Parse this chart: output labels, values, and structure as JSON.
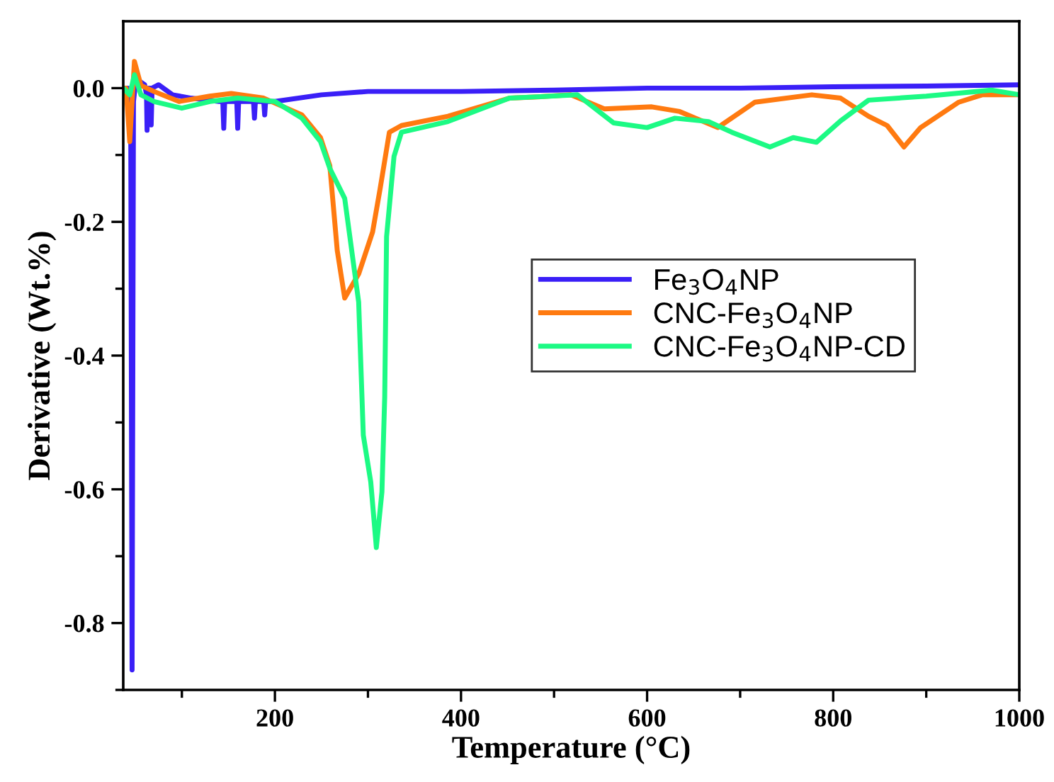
{
  "chart_data": {
    "type": "line",
    "xlabel": "Temperature (°C)",
    "ylabel": "Derivative (Wt.%)",
    "xlim": [
      37,
      1000
    ],
    "ylim": [
      -0.9,
      0.1
    ],
    "xticks": [
      {
        "value": 100,
        "label": null
      },
      200,
      {
        "value": 300,
        "label": null
      },
      400,
      {
        "value": 500,
        "label": null
      },
      600,
      {
        "value": 700,
        "label": null
      },
      800,
      {
        "value": 900,
        "label": null
      },
      1000
    ],
    "yticks": [
      {
        "value": -0.9,
        "label": null
      },
      {
        "value": -0.8,
        "label": "-0.8"
      },
      {
        "value": -0.7,
        "label": null
      },
      {
        "value": -0.6,
        "label": "-0.6"
      },
      {
        "value": -0.5,
        "label": null
      },
      {
        "value": -0.4,
        "label": "-0.4"
      },
      {
        "value": -0.3,
        "label": null
      },
      {
        "value": -0.2,
        "label": "-0.2"
      },
      {
        "value": -0.1,
        "label": null
      },
      {
        "value": 0.0,
        "label": "0.0"
      }
    ],
    "grid": false,
    "legend": "right",
    "marker": "none",
    "line_style": "solid",
    "series": [
      {
        "name": "Fe$_{3}$O$_{4}$NP",
        "color": "#3a1ff7",
        "x": [
          37,
          42,
          45,
          46.5,
          48,
          50,
          55,
          60,
          62,
          62.6,
          63,
          66,
          67,
          68,
          75,
          90,
          110,
          140,
          144,
          145,
          146,
          150,
          159,
          160,
          161,
          170,
          177,
          178,
          179,
          188,
          189,
          190,
          200,
          250,
          300,
          400,
          500,
          600,
          700,
          800,
          900,
          1000
        ],
        "values": [
          0.0,
          0.0,
          -0.02,
          -0.87,
          -0.02,
          0.005,
          0.01,
          0.005,
          -0.01,
          -0.063,
          0.0,
          0.0,
          -0.055,
          0.0,
          0.005,
          -0.01,
          -0.015,
          -0.02,
          -0.02,
          -0.06,
          -0.02,
          -0.02,
          -0.02,
          -0.06,
          -0.02,
          -0.02,
          -0.02,
          -0.045,
          -0.02,
          -0.02,
          -0.04,
          -0.02,
          -0.02,
          -0.01,
          -0.005,
          -0.005,
          -0.003,
          0.0,
          0.0,
          0.002,
          0.003,
          0.005
        ]
      },
      {
        "name": "CNC-Fe$_{3}$O$_{4}$NP",
        "color": "#ff7a10",
        "x": [
          37,
          40,
          44,
          49,
          56,
          70,
          97,
          130,
          153,
          188,
          229,
          249,
          259,
          267,
          275,
          290,
          305,
          313,
          323,
          336,
          386,
          452,
          483,
          518,
          554,
          605,
          635,
          676,
          716,
          777,
          808,
          838,
          858,
          876,
          894,
          935,
          960,
          1000
        ],
        "values": [
          -0.006,
          0.0,
          -0.08,
          0.04,
          0.004,
          -0.005,
          -0.02,
          -0.012,
          -0.008,
          -0.015,
          -0.04,
          -0.074,
          -0.116,
          -0.243,
          -0.314,
          -0.278,
          -0.215,
          -0.151,
          -0.066,
          -0.056,
          -0.042,
          -0.015,
          -0.013,
          -0.01,
          -0.031,
          -0.028,
          -0.035,
          -0.059,
          -0.021,
          -0.01,
          -0.015,
          -0.042,
          -0.056,
          -0.088,
          -0.059,
          -0.021,
          -0.01,
          -0.01
        ]
      },
      {
        "name": "CNC-Fe$_{3}$O$_{4}$NP-CD",
        "color": "#1cfa84",
        "x": [
          37,
          44,
          49,
          56,
          70,
          100,
          130,
          160,
          200,
          229,
          249,
          259,
          275,
          290,
          295,
          303,
          309,
          315,
          318,
          320,
          328,
          336,
          386,
          452,
          525,
          564,
          600,
          630,
          666,
          691,
          732,
          757,
          782,
          808,
          838,
          900,
          970,
          1000
        ],
        "values": [
          0.0,
          -0.01,
          0.02,
          -0.01,
          -0.02,
          -0.03,
          -0.02,
          -0.015,
          -0.02,
          -0.045,
          -0.08,
          -0.12,
          -0.165,
          -0.32,
          -0.519,
          -0.589,
          -0.687,
          -0.604,
          -0.462,
          -0.222,
          -0.102,
          -0.066,
          -0.05,
          -0.015,
          -0.01,
          -0.052,
          -0.059,
          -0.045,
          -0.05,
          -0.066,
          -0.088,
          -0.074,
          -0.081,
          -0.049,
          -0.018,
          -0.012,
          -0.003,
          -0.01
        ]
      }
    ]
  }
}
